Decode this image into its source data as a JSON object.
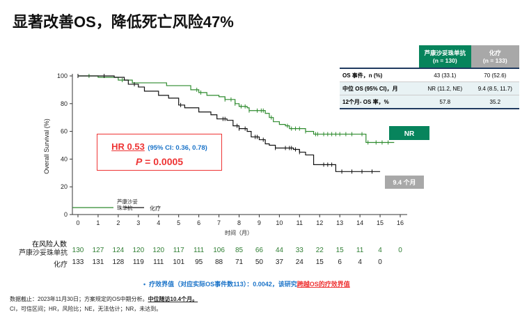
{
  "title": "显著改善OS，降低死亡风险47%",
  "table": {
    "headers": [
      {
        "name": "芦康沙妥珠单抗",
        "n": "(n = 130)",
        "color": "#07845c"
      },
      {
        "name": "化疗",
        "n": "(n = 133)",
        "color": "#a8a8a8"
      }
    ],
    "rows": [
      {
        "label": "OS 事件，n (%)",
        "values": [
          "43 (33.1)",
          "70 (52.6)"
        ]
      },
      {
        "label": "中位 OS (95% CI)，月",
        "values": [
          "NR (11.2, NE)",
          "9.4 (8.5, 11.7)"
        ]
      },
      {
        "label": "12个月- OS 率，%",
        "values": [
          "57.8",
          "35.2"
        ]
      }
    ]
  },
  "hr": {
    "hr_text": "HR 0.53",
    "ci_text": "(95% CI: 0.36, 0.78)",
    "p_label": "P",
    "p_value": "= 0.0005"
  },
  "badges": {
    "green": "NR",
    "gray": "9.4 个月"
  },
  "chart_data": {
    "type": "line",
    "xlabel": "时间（月）",
    "ylabel": "Overall Survival (%)",
    "xlim": [
      0,
      16
    ],
    "ylim": [
      0,
      100
    ],
    "xticks": [
      0,
      1,
      2,
      3,
      4,
      5,
      6,
      7,
      8,
      9,
      10,
      11,
      12,
      13,
      14,
      15,
      16
    ],
    "yticks": [
      0,
      20,
      40,
      60,
      80,
      100
    ],
    "legend": {
      "position": "bottom-left"
    },
    "series": [
      {
        "name": "芦康沙妥珠单抗",
        "color": "#2e8b2e",
        "points": [
          [
            0,
            100
          ],
          [
            1,
            99
          ],
          [
            2,
            97
          ],
          [
            2.7,
            95
          ],
          [
            4.3,
            95
          ],
          [
            4.4,
            93
          ],
          [
            5.3,
            93
          ],
          [
            5.6,
            90
          ],
          [
            6,
            88
          ],
          [
            6.4,
            86
          ],
          [
            7,
            85
          ],
          [
            7.3,
            83
          ],
          [
            7.8,
            80
          ],
          [
            8,
            78
          ],
          [
            8.4,
            77
          ],
          [
            8.5,
            75
          ],
          [
            9.3,
            73
          ],
          [
            9.5,
            70
          ],
          [
            9.7,
            67
          ],
          [
            10,
            65
          ],
          [
            10.3,
            64
          ],
          [
            10.5,
            62
          ],
          [
            11.3,
            60
          ],
          [
            11.7,
            58
          ],
          [
            14.3,
            58
          ],
          [
            14.3,
            52
          ],
          [
            15.7,
            52
          ]
        ],
        "censor": [
          0.55,
          2.2,
          5.9,
          6.1,
          7.3,
          7.6,
          7.8,
          8.1,
          8.3,
          8.5,
          8.9,
          9.1,
          9.2,
          9.6,
          10.4,
          10.6,
          10.8,
          11.0,
          11.3,
          11.8,
          11.9,
          12.2,
          12.4,
          12.6,
          12.8,
          13.0,
          13.3,
          13.6,
          14.1,
          14.4,
          14.8,
          15.1,
          15.4
        ]
      },
      {
        "name": "化疗",
        "color": "#111111",
        "points": [
          [
            0,
            100
          ],
          [
            1.8,
            99
          ],
          [
            2.3,
            97
          ],
          [
            2.5,
            94
          ],
          [
            3,
            92
          ],
          [
            3.3,
            89
          ],
          [
            4,
            86
          ],
          [
            4.5,
            84
          ],
          [
            5,
            79
          ],
          [
            5.3,
            77
          ],
          [
            6,
            74
          ],
          [
            6.6,
            72
          ],
          [
            6.9,
            69
          ],
          [
            7.4,
            68
          ],
          [
            7.7,
            64
          ],
          [
            8,
            62
          ],
          [
            8.4,
            60
          ],
          [
            8.6,
            56
          ],
          [
            9,
            54
          ],
          [
            9.3,
            51
          ],
          [
            9.5,
            50
          ],
          [
            9.8,
            48
          ],
          [
            10.7,
            47
          ],
          [
            11,
            45
          ],
          [
            11.3,
            43
          ],
          [
            11.7,
            36
          ],
          [
            12.8,
            36
          ],
          [
            12.8,
            31
          ],
          [
            15,
            31
          ]
        ],
        "censor": [
          0,
          1.3,
          2.8,
          5.1,
          7.2,
          7.3,
          7.9,
          8.0,
          8.3,
          8.8,
          8.9,
          9.2,
          9.8,
          10.3,
          10.5,
          10.6,
          10.8,
          11.0,
          12.2,
          12.4,
          12.6,
          13.1,
          13.6,
          14.1,
          14.6
        ]
      }
    ]
  },
  "risk": {
    "title": "在风险人数",
    "rows": [
      {
        "label": "芦康沙妥珠单抗",
        "color": "#2e7d32",
        "values": [
          "130",
          "127",
          "124",
          "120",
          "120",
          "117",
          "111",
          "106",
          "85",
          "66",
          "44",
          "33",
          "22",
          "15",
          "11",
          "4",
          "0"
        ]
      },
      {
        "label": "化疗",
        "color": "#222",
        "values": [
          "133",
          "131",
          "128",
          "119",
          "111",
          "101",
          "95",
          "88",
          "71",
          "50",
          "37",
          "24",
          "15",
          "6",
          "4",
          "0"
        ]
      }
    ]
  },
  "efficacy": {
    "bullet": "•",
    "text": "疗效界值（对应实际OS事件数113）：0.0042，该研究",
    "highlight": "跨越OS的疗效界值"
  },
  "footnotes": {
    "line1": "数据截止：2023年11月30日；方案规定的OS中期分析。",
    "line1_bold": "中位随访10.4个月。",
    "line2": "CI，可信区间；HR，风险比；NE，无法估计；NR，未达到。"
  }
}
